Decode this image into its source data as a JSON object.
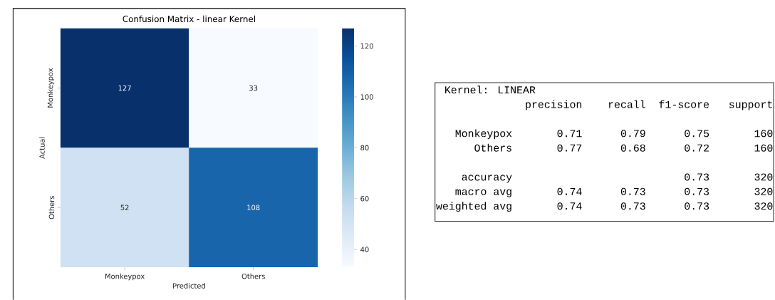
{
  "chart_data": [
    {
      "type": "heatmap",
      "title": "Confusion Matrix - linear Kernel",
      "xlabel": "Predicted",
      "ylabel": "Actual",
      "categories": [
        "Monkeypox",
        "Others"
      ],
      "y_categories": [
        "Monkeypox",
        "Others"
      ],
      "cells": [
        [
          127,
          33
        ],
        [
          52,
          108
        ]
      ],
      "data_labels": true,
      "clim": [
        33,
        127
      ],
      "cticks": [
        40,
        60,
        80,
        100,
        120
      ]
    },
    {
      "type": "other",
      "title": "Kernel: LINEAR",
      "annotations": [
        "              precision    recall  f1-score   support",
        "   Monkeypox       0.71      0.79      0.75       160",
        "      Others       0.77      0.68      0.72       160",
        "    accuracy                           0.73       320",
        "   macro avg       0.74      0.73      0.73       320",
        "weighted avg       0.74      0.73      0.73       320"
      ]
    }
  ]
}
